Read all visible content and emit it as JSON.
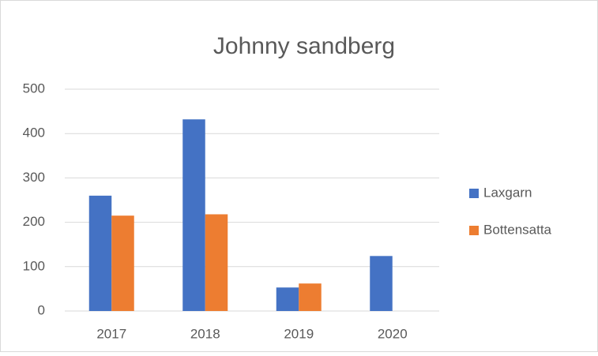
{
  "chart_data": {
    "type": "bar",
    "title": "Johnny sandberg",
    "categories": [
      "2017",
      "2018",
      "2019",
      "2020"
    ],
    "series": [
      {
        "name": "Laxgarn",
        "color": "#4472c4",
        "values": [
          260,
          432,
          53,
          124
        ]
      },
      {
        "name": "Bottensatta",
        "color": "#ed7d31",
        "values": [
          215,
          218,
          62,
          null
        ]
      }
    ],
    "ylim": [
      0,
      500
    ],
    "yticks": [
      0,
      100,
      200,
      300,
      400,
      500
    ],
    "grid": true,
    "legend": "right"
  }
}
